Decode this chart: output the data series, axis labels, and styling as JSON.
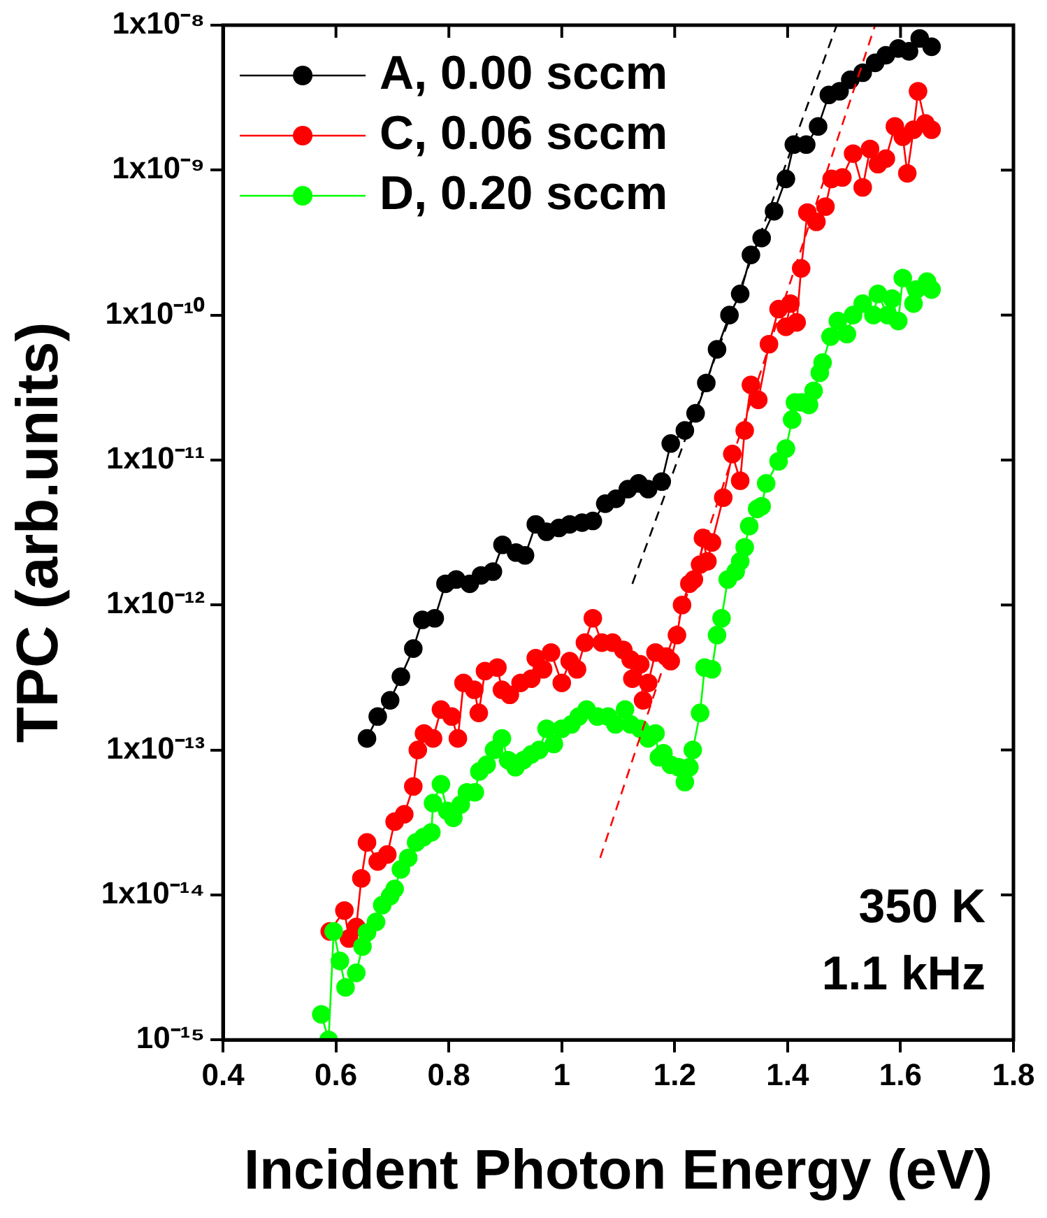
{
  "chart_data": {
    "type": "line",
    "xlabel": "Incident Photon Energy (eV)",
    "ylabel": "TPC (arb.units)",
    "log": true,
    "marker": "circle",
    "legend": "top left",
    "xlim": [
      0.4,
      1.8
    ],
    "xticks": [
      0.4,
      0.6,
      0.8,
      1.0,
      1.2,
      1.4,
      1.6,
      1.8
    ],
    "ylim": [
      1e-15,
      1e-08
    ],
    "yticks": [
      {
        "value": 1e-15,
        "label": "10⁻¹⁵"
      },
      {
        "value": 1e-14,
        "label": "1x10⁻¹⁴"
      },
      {
        "value": 1e-13,
        "label": "1x10⁻¹³"
      },
      {
        "value": 1e-12,
        "label": "1x10⁻¹²"
      },
      {
        "value": 1e-11,
        "label": "1x10⁻¹¹"
      },
      {
        "value": 1e-10,
        "label": "1x10⁻¹⁰"
      },
      {
        "value": 1e-09,
        "label": "1x10⁻⁹"
      },
      {
        "value": 1e-08,
        "label": "1x10⁻⁸"
      }
    ],
    "annotations": [
      "350 K",
      "1.1 kHz"
    ],
    "series": [
      {
        "name": "A, 0.00 sccm",
        "color": "#000000",
        "x": [
          0.655,
          0.674,
          0.696,
          0.715,
          0.737,
          0.753,
          0.775,
          0.794,
          0.813,
          0.837,
          0.857,
          0.878,
          0.895,
          0.919,
          0.935,
          0.954,
          0.973,
          0.995,
          1.014,
          1.036,
          1.055,
          1.077,
          1.096,
          1.117,
          1.136,
          1.153,
          1.177,
          1.193,
          1.218,
          1.237,
          1.256,
          1.275,
          1.297,
          1.316,
          1.335,
          1.354,
          1.376,
          1.397,
          1.411,
          1.433,
          1.454,
          1.473,
          1.492,
          1.511,
          1.533,
          1.555,
          1.574,
          1.596,
          1.615,
          1.634,
          1.655
        ],
        "values": [
          1.2e-13,
          1.7e-13,
          2.2e-13,
          3.2e-13,
          5e-13,
          7.9e-13,
          8.1e-13,
          1.4e-12,
          1.5e-12,
          1.4e-12,
          1.6e-12,
          1.7e-12,
          2.6e-12,
          2.3e-12,
          2.2e-12,
          3.6e-12,
          3.2e-12,
          3.4e-12,
          3.6e-12,
          3.7e-12,
          3.8e-12,
          5e-12,
          5.4e-12,
          6.3e-12,
          6.9e-12,
          6.3e-12,
          7.1e-12,
          1.3e-11,
          1.6e-11,
          2.1e-11,
          3.4e-11,
          5.8e-11,
          1e-10,
          1.4e-10,
          2.6e-10,
          3.4e-10,
          5.2e-10,
          8.7e-10,
          1.5e-09,
          1.5e-09,
          2e-09,
          3.3e-09,
          3.5e-09,
          4.2e-09,
          4.7e-09,
          5.5e-09,
          6.2e-09,
          6.9e-09,
          6.6e-09,
          8.1e-09,
          7.1e-09
        ]
      },
      {
        "name": "C, 0.06 sccm",
        "color": "#ff0000",
        "x": [
          0.589,
          0.615,
          0.623,
          0.636,
          0.645,
          0.655,
          0.674,
          0.691,
          0.704,
          0.721,
          0.737,
          0.745,
          0.756,
          0.772,
          0.786,
          0.805,
          0.816,
          0.826,
          0.845,
          0.853,
          0.864,
          0.886,
          0.894,
          0.908,
          0.927,
          0.946,
          0.954,
          0.967,
          0.981,
          1.0,
          1.014,
          1.027,
          1.041,
          1.055,
          1.071,
          1.09,
          1.109,
          1.122,
          1.125,
          1.139,
          1.144,
          1.153,
          1.166,
          1.185,
          1.193,
          1.204,
          1.213,
          1.226,
          1.234,
          1.245,
          1.25,
          1.258,
          1.266,
          1.286,
          1.302,
          1.316,
          1.324,
          1.335,
          1.348,
          1.367,
          1.384,
          1.397,
          1.405,
          1.416,
          1.424,
          1.435,
          1.451,
          1.467,
          1.478,
          1.497,
          1.516,
          1.533,
          1.546,
          1.56,
          1.574,
          1.59,
          1.604,
          1.612,
          1.623,
          1.631,
          1.644,
          1.655
        ],
        "values": [
          5.6e-15,
          7.8e-15,
          5e-15,
          6e-15,
          1.3e-14,
          2.3e-14,
          1.7e-14,
          1.9e-14,
          3.2e-14,
          3.6e-14,
          5.6e-14,
          1e-13,
          1.3e-13,
          1.2e-13,
          1.9e-13,
          1.7e-13,
          1.2e-13,
          2.9e-13,
          2.6e-13,
          1.8e-13,
          3.5e-13,
          3.7e-13,
          2.6e-13,
          2.4e-13,
          2.9e-13,
          3.1e-13,
          4.3e-13,
          3.6e-13,
          4.7e-13,
          2.9e-13,
          4.1e-13,
          3.6e-13,
          5.5e-13,
          8.1e-13,
          5.5e-13,
          5.5e-13,
          4.9e-13,
          4.2e-13,
          3.1e-13,
          3.9e-13,
          2.2e-13,
          2.9e-13,
          4.7e-13,
          4.4e-13,
          4.1e-13,
          6.2e-13,
          1e-12,
          1.4e-12,
          1.5e-12,
          1.9e-12,
          2.9e-12,
          2e-12,
          2.7e-12,
          5.5e-12,
          1.1e-11,
          7.2e-12,
          1.6e-11,
          3.3e-11,
          2.6e-11,
          6.3e-11,
          1.1e-10,
          8.3e-11,
          1.2e-10,
          8.9e-11,
          2.1e-10,
          5.1e-10,
          4.4e-10,
          5.6e-10,
          8.7e-10,
          8.9e-10,
          1.3e-09,
          7.6e-10,
          1.4e-09,
          1.1e-09,
          1.2e-09,
          2e-09,
          1.7e-09,
          9.5e-10,
          1.9e-09,
          3.5e-09,
          2.1e-09,
          1.9e-09
        ]
      },
      {
        "name": "D, 0.20 sccm",
        "color": "#00ff00",
        "x": [
          0.574,
          0.587,
          0.596,
          0.607,
          0.617,
          0.636,
          0.647,
          0.655,
          0.671,
          0.682,
          0.696,
          0.704,
          0.715,
          0.728,
          0.742,
          0.755,
          0.769,
          0.772,
          0.786,
          0.797,
          0.808,
          0.821,
          0.832,
          0.846,
          0.854,
          0.867,
          0.88,
          0.894,
          0.905,
          0.918,
          0.932,
          0.946,
          0.96,
          0.973,
          0.986,
          1.0,
          1.017,
          1.03,
          1.044,
          1.063,
          1.082,
          1.095,
          1.112,
          1.122,
          1.139,
          1.153,
          1.166,
          1.172,
          1.18,
          1.193,
          1.207,
          1.218,
          1.226,
          1.232,
          1.245,
          1.253,
          1.266,
          1.275,
          1.283,
          1.294,
          1.308,
          1.316,
          1.324,
          1.332,
          1.346,
          1.354,
          1.362,
          1.384,
          1.397,
          1.408,
          1.413,
          1.424,
          1.438,
          1.446,
          1.457,
          1.462,
          1.476,
          1.489,
          1.505,
          1.516,
          1.533,
          1.552,
          1.56,
          1.577,
          1.585,
          1.596,
          1.604,
          1.623,
          1.628,
          1.647,
          1.655
        ],
        "values": [
          1.5e-15,
          1e-15,
          5.6e-15,
          3.5e-15,
          2.3e-15,
          2.9e-15,
          4.4e-15,
          5.5e-15,
          6.5e-15,
          8.5e-15,
          9.8e-15,
          1.1e-14,
          1.5e-14,
          1.8e-14,
          2.3e-14,
          2.5e-14,
          2.7e-14,
          4.3e-14,
          5.8e-14,
          3.8e-14,
          3.4e-14,
          4.2e-14,
          5.1e-14,
          5.1e-14,
          7.1e-14,
          7.9e-14,
          1e-13,
          1.2e-13,
          8.5e-14,
          7.6e-14,
          8.5e-14,
          9.3e-14,
          1e-13,
          1.4e-13,
          1.1e-13,
          1.4e-13,
          1.5e-13,
          1.7e-13,
          1.9e-13,
          1.7e-13,
          1.7e-13,
          1.5e-13,
          1.9e-13,
          1.5e-13,
          1.4e-13,
          1.2e-13,
          1.3e-13,
          8.9e-14,
          9.5e-14,
          7.9e-14,
          7.6e-14,
          6e-14,
          7.6e-14,
          1e-13,
          1.8e-13,
          3.7e-13,
          3.6e-13,
          6.2e-13,
          8.1e-13,
          1.5e-12,
          1.7e-12,
          2e-12,
          2.5e-12,
          3.5e-12,
          4.6e-12,
          4.8e-12,
          6.9e-12,
          9.8e-12,
          1.2e-11,
          1.9e-11,
          2.5e-11,
          2.5e-11,
          2.4e-11,
          3e-11,
          4e-11,
          4.7e-11,
          7.1e-11,
          9.1e-11,
          7.4e-11,
          1e-10,
          1.2e-10,
          1e-10,
          1.4e-10,
          1e-10,
          1.3e-10,
          9.1e-11,
          1.8e-10,
          1.2e-10,
          1.5e-10,
          1.7e-10,
          1.5e-10
        ]
      },
      {
        "type": "line",
        "color": "#000000",
        "marker": "none",
        "line_style": "dashed",
        "x": [
          1.125,
          1.487
        ],
        "values": [
          1.4e-12,
          1e-08
        ]
      },
      {
        "type": "line",
        "color": "#ff0000",
        "marker": "none",
        "line_style": "dashed",
        "x": [
          1.068,
          1.555
        ],
        "values": [
          1.8e-14,
          1e-08
        ]
      }
    ]
  }
}
